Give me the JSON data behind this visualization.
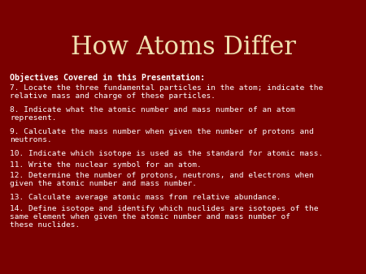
{
  "title": "How Atoms Differ",
  "title_color": "#F0E0B0",
  "title_fontsize": 22,
  "background_color": "#7B0000",
  "subtitle": "Objectives Covered in this Presentation:",
  "subtitle_fontsize": 7.2,
  "body_color": "#FFFFFF",
  "body_fontsize": 6.8,
  "body_lines": [
    "7. Locate the three fundamental particles in the atom; indicate the\nrelative mass and charge of these particles.",
    "8. Indicate what the atomic number and mass number of an atom\nrepresent.",
    "9. Calculate the mass number when given the number of protons and\nneutrons.",
    "10. Indicate which isotope is used as the standard for atomic mass.",
    "11. Write the nuclear symbol for an atom.",
    "12. Determine the number of protons, neutrons, and electrons when\ngiven the atomic number and mass number.",
    "13. Calculate average atomic mass from relative abundance.",
    "14. Define isotope and identify which nuclides are isotopes of the\nsame element when given the atomic number and mass number of\nthese nuclides."
  ],
  "line_heights": [
    2,
    2,
    2,
    1,
    1,
    2,
    1,
    3
  ]
}
